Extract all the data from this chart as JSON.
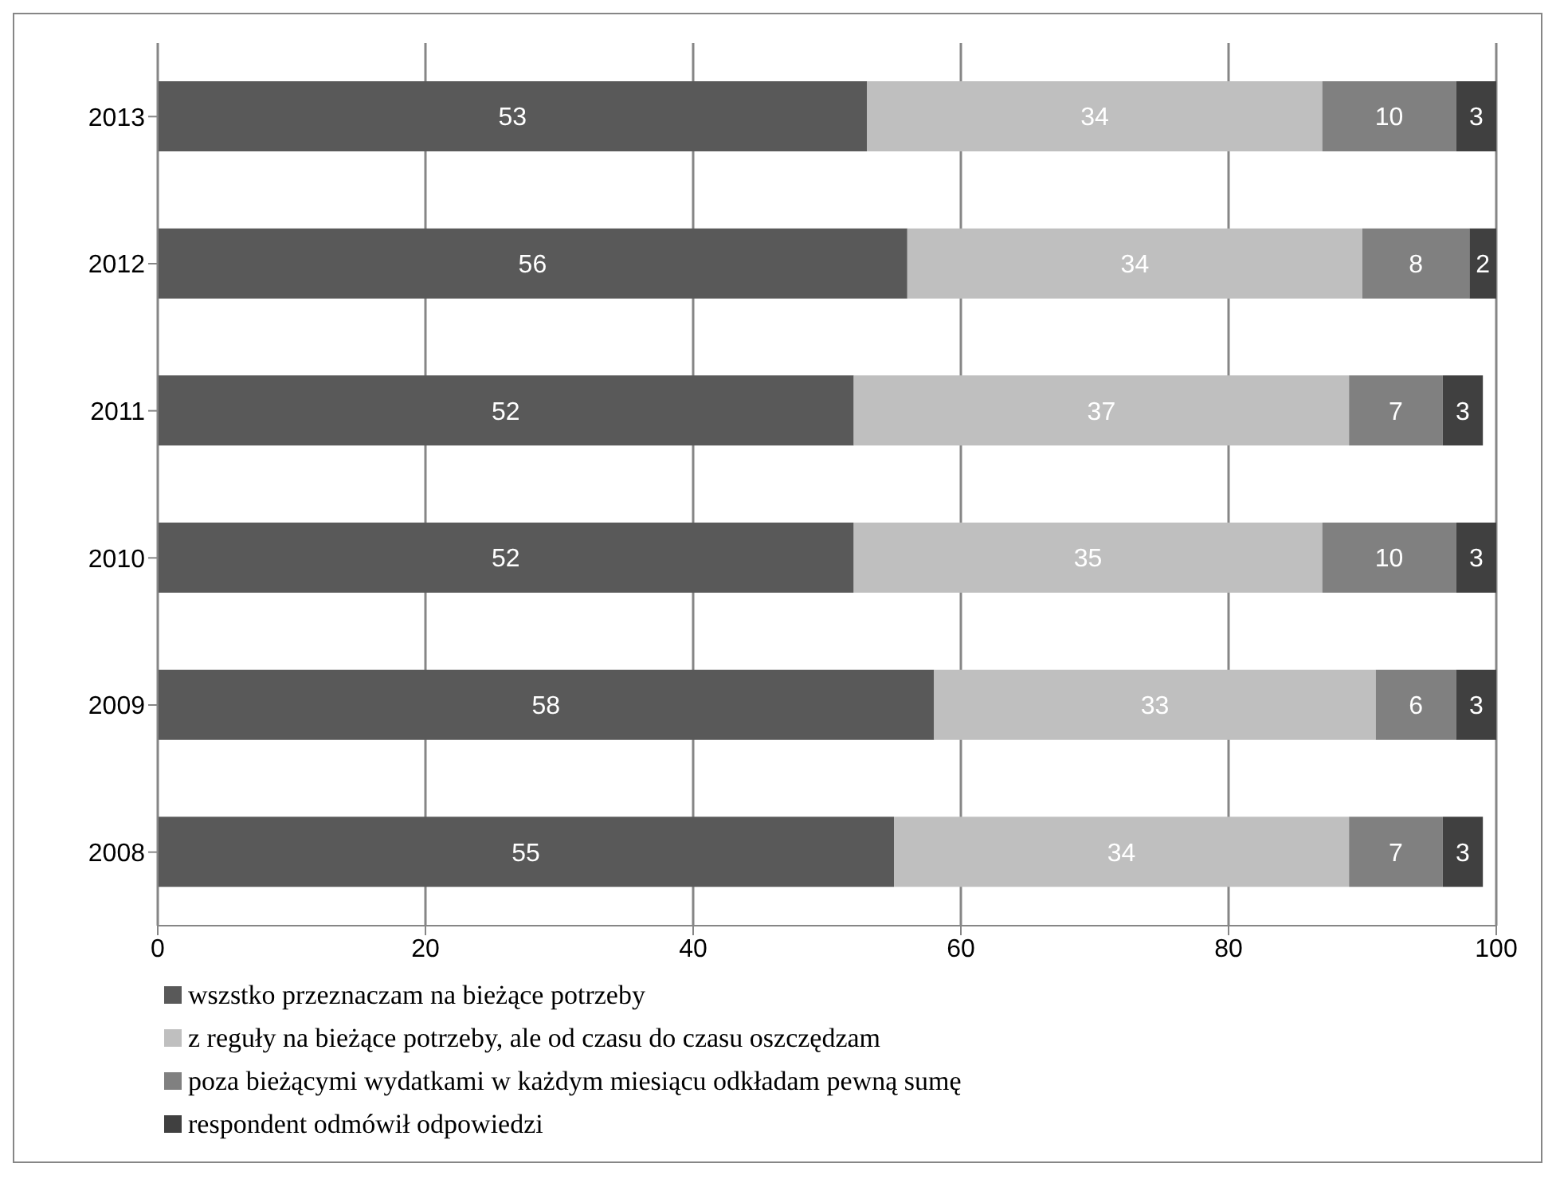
{
  "chart_data": {
    "type": "bar",
    "orientation": "horizontal",
    "stacked": true,
    "categories": [
      "2013",
      "2012",
      "2011",
      "2010",
      "2009",
      "2008"
    ],
    "series": [
      {
        "name": "wszstko przeznaczam na bieżące potrzeby",
        "color": "#595959",
        "values": [
          53,
          56,
          52,
          52,
          58,
          55
        ]
      },
      {
        "name": "z reguły na bieżące potrzeby, ale od czasu do czasu oszczędzam",
        "color": "#bfbfbf",
        "values": [
          34,
          34,
          37,
          35,
          33,
          34
        ]
      },
      {
        "name": "poza bieżącymi wydatkami w każdym miesiącu odkładam pewną sumę",
        "color": "#808080",
        "values": [
          10,
          8,
          7,
          10,
          6,
          7
        ]
      },
      {
        "name": "respondent odmówił odpowiedzi",
        "color": "#404040",
        "values": [
          3,
          2,
          3,
          3,
          3,
          3
        ]
      }
    ],
    "xlim": [
      0,
      100
    ],
    "xticks": [
      0,
      20,
      40,
      60,
      80,
      100
    ],
    "grid": "x",
    "legend": "bottom left",
    "data_labels": true
  }
}
